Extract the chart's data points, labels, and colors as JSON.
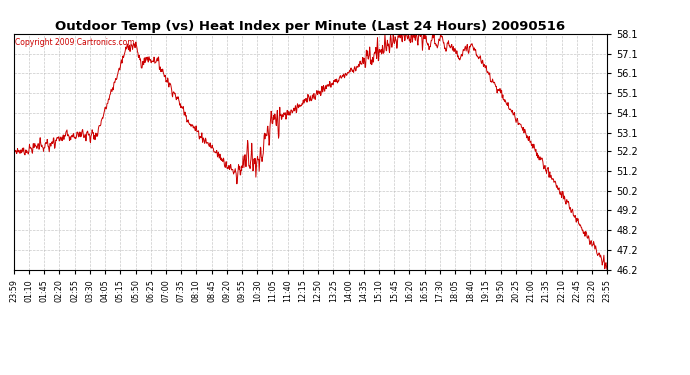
{
  "title": "Outdoor Temp (vs) Heat Index per Minute (Last 24 Hours) 20090516",
  "copyright_text": "Copyright 2009 Cartronics.com",
  "line_color": "#cc0000",
  "background_color": "#ffffff",
  "grid_color": "#bbbbbb",
  "y_min": 46.2,
  "y_max": 58.1,
  "y_ticks": [
    46.2,
    47.2,
    48.2,
    49.2,
    50.2,
    51.2,
    52.2,
    53.1,
    54.1,
    55.1,
    56.1,
    57.1,
    58.1
  ],
  "x_labels": [
    "23:59",
    "01:10",
    "01:45",
    "02:20",
    "02:55",
    "03:30",
    "04:05",
    "05:15",
    "05:50",
    "06:25",
    "07:00",
    "07:35",
    "08:10",
    "08:45",
    "09:20",
    "09:55",
    "10:30",
    "11:05",
    "11:40",
    "12:15",
    "12:50",
    "13:25",
    "14:00",
    "14:35",
    "15:10",
    "15:45",
    "16:20",
    "16:55",
    "17:30",
    "18:05",
    "18:40",
    "19:15",
    "19:50",
    "20:25",
    "21:00",
    "21:35",
    "22:10",
    "22:45",
    "23:20",
    "23:55"
  ],
  "figwidth": 6.9,
  "figheight": 3.75,
  "dpi": 100
}
